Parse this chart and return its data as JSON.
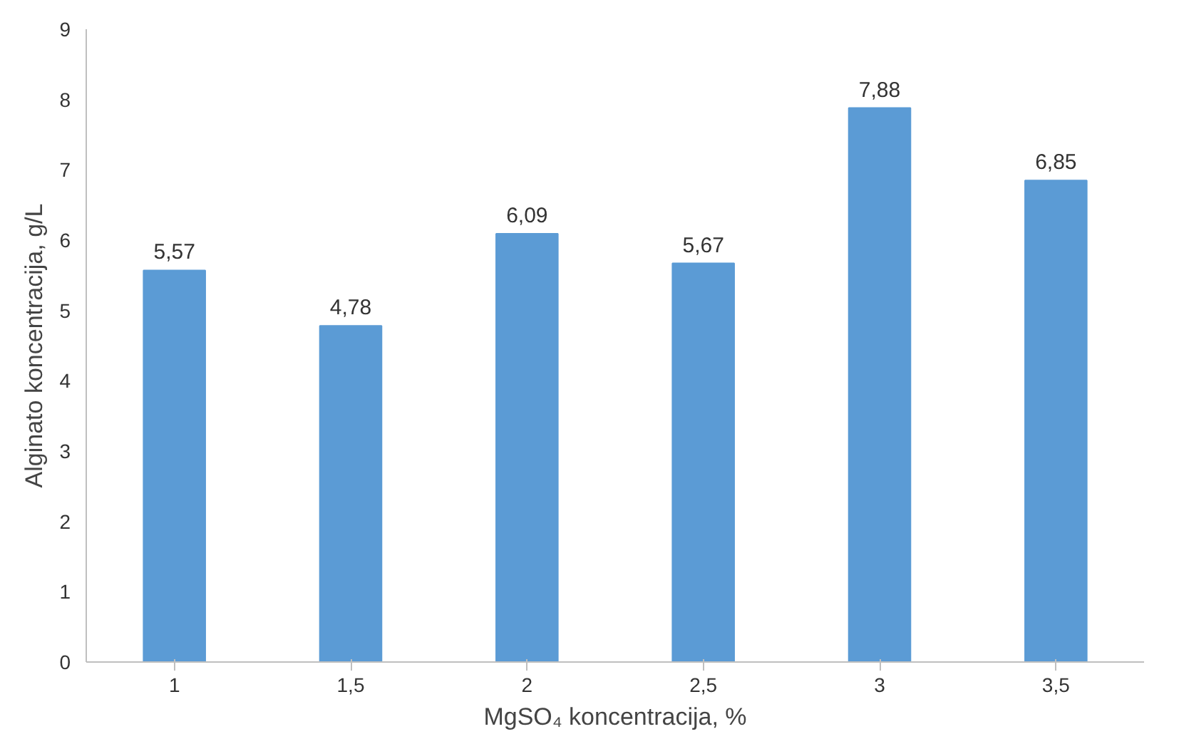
{
  "chart_data": {
    "type": "bar",
    "xlabel": "MgSO₄ koncentracija, %",
    "ylabel": "Alginato koncentracija, g/L",
    "categories": [
      "1",
      "1,5",
      "2",
      "2,5",
      "3",
      "3,5"
    ],
    "values": [
      5.57,
      4.78,
      6.09,
      5.67,
      7.88,
      6.85
    ],
    "value_labels": [
      "5,57",
      "4,78",
      "6,09",
      "5,67",
      "7,88",
      "6,85"
    ],
    "color": "#5b9bd5",
    "ylim": [
      0,
      9
    ],
    "yticks": [
      0,
      1,
      2,
      3,
      4,
      5,
      6,
      7,
      8,
      9
    ],
    "grid": false
  }
}
